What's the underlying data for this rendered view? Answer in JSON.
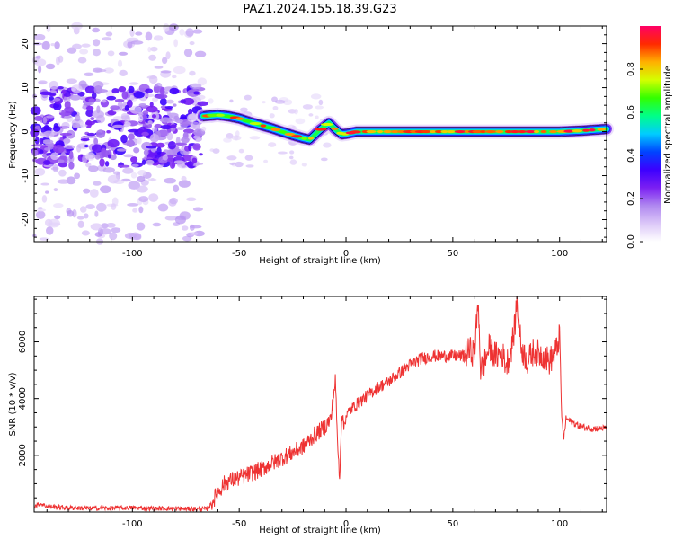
{
  "figure": {
    "title": "PAZ1.2024.155.18.39.G23"
  },
  "chart_data": [
    {
      "type": "heatmap",
      "title": "PAZ1.2024.155.18.39.G23",
      "xlabel": "Height of straight line (km)",
      "ylabel": "Frequency (Hz)",
      "xlim": [
        -146,
        122
      ],
      "ylim": [
        -25,
        24
      ],
      "xticks": [
        -100,
        -50,
        0,
        50,
        100
      ],
      "yticks": [
        -20,
        -10,
        0,
        10,
        20
      ],
      "description_of_field": [
        {
          "x_from": -146,
          "x_to": -67,
          "pattern": "scattered low-amplitude blobs, strongest between -10 and 10 Hz"
        },
        {
          "x_from": -67,
          "x_to": 122,
          "pattern": "narrow high-amplitude ridge following the Doppler track"
        }
      ],
      "ridge_track": {
        "x": [
          -67,
          -60,
          -55,
          -50,
          -45,
          -40,
          -35,
          -30,
          -25,
          -20,
          -17,
          -12,
          -8,
          -5,
          -2,
          0,
          5,
          20,
          40,
          60,
          80,
          100,
          110,
          122
        ],
        "freq": [
          3.5,
          3.8,
          3.5,
          3.0,
          2.2,
          1.5,
          0.8,
          0.0,
          -0.8,
          -1.5,
          -1.8,
          0.5,
          2.0,
          0.5,
          -0.6,
          -0.5,
          0.0,
          0.0,
          0.0,
          0.0,
          0.0,
          0.0,
          0.2,
          0.6
        ]
      },
      "colorbar": {
        "label": "Normalized spectral amplitude",
        "range": [
          0,
          1
        ],
        "ticks": [
          "0.0",
          "0.2",
          "0.4",
          "0.6",
          "0.8"
        ],
        "tick_values": [
          0.0,
          0.2,
          0.4,
          0.6,
          0.8
        ],
        "colors": [
          "#ffffff",
          "#dcc8f8",
          "#b088f0",
          "#7b1ff2",
          "#3c00ff",
          "#0044ff",
          "#00ccff",
          "#00ff88",
          "#33ff00",
          "#d4ff00",
          "#ffb000",
          "#ff2a00",
          "#ff0066"
        ]
      }
    },
    {
      "type": "line",
      "xlabel": "Height of straight line (km)",
      "ylabel": "SNR (10 * v/v)",
      "xlim": [
        -146,
        122
      ],
      "ylim": [
        0,
        7600
      ],
      "xticks": [
        -100,
        -50,
        0,
        50,
        100
      ],
      "yticks": [
        2000,
        4000,
        6000
      ],
      "line_color": "#ee3333",
      "series": [
        {
          "x": [
            -146,
            -143,
            -140,
            -130,
            -120,
            -110,
            -100,
            -90,
            -80,
            -70,
            -65,
            -63,
            -60,
            -57,
            -55,
            -50,
            -45,
            -40,
            -35,
            -30,
            -25,
            -20,
            -15,
            -10,
            -7,
            -5,
            -4,
            -3,
            -2,
            -1,
            0,
            2,
            5,
            10,
            15,
            20,
            25,
            30,
            35,
            40,
            45,
            50,
            55,
            58,
            60,
            62,
            63,
            65,
            67,
            70,
            73,
            75,
            77,
            79,
            80,
            82,
            85,
            88,
            90,
            93,
            95,
            97,
            99,
            100,
            101,
            102,
            103,
            105,
            110,
            115,
            122
          ],
          "y": [
            200,
            300,
            200,
            150,
            130,
            140,
            150,
            130,
            120,
            110,
            110,
            300,
            700,
            1000,
            1100,
            1200,
            1350,
            1500,
            1700,
            1900,
            2100,
            2300,
            2700,
            3000,
            3300,
            4700,
            2500,
            1200,
            3500,
            3000,
            3400,
            3600,
            3800,
            4100,
            4400,
            4600,
            4900,
            5200,
            5400,
            5500,
            5500,
            5500,
            5500,
            5700,
            5600,
            7400,
            5000,
            5300,
            5800,
            5500,
            5600,
            5200,
            5600,
            6500,
            7500,
            5800,
            5300,
            5700,
            5600,
            5500,
            5300,
            5500,
            5800,
            6400,
            3300,
            2600,
            3300,
            3200,
            3000,
            2950,
            2950
          ]
        }
      ]
    }
  ]
}
